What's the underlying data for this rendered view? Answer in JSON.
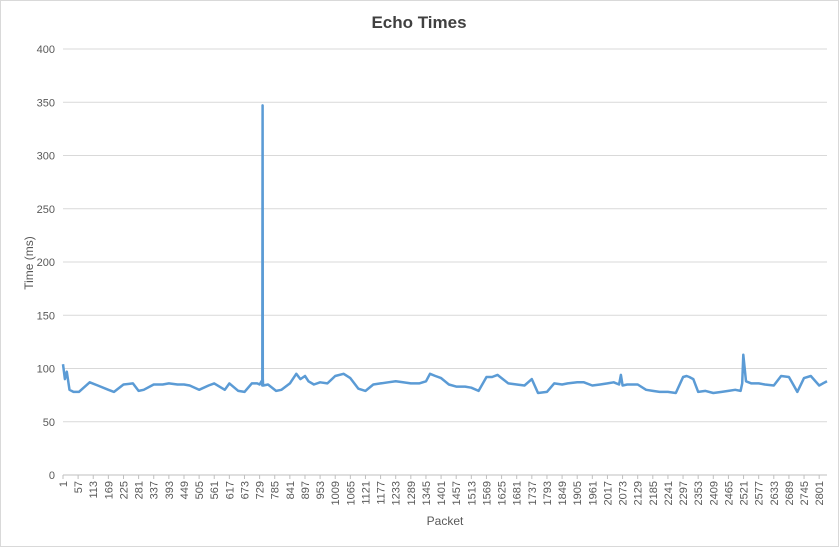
{
  "chart_data": {
    "type": "line",
    "title": "Echo Times",
    "xlabel": "Packet",
    "ylabel": "Time (ms)",
    "ylim": [
      0,
      400
    ],
    "yticks": [
      0,
      50,
      100,
      150,
      200,
      250,
      300,
      350,
      400
    ],
    "xlim": [
      1,
      2830
    ],
    "xticks": [
      1,
      57,
      113,
      169,
      225,
      281,
      337,
      393,
      449,
      505,
      561,
      617,
      673,
      729,
      785,
      841,
      897,
      953,
      1009,
      1065,
      1121,
      1177,
      1233,
      1289,
      1345,
      1401,
      1457,
      1513,
      1569,
      1625,
      1681,
      1737,
      1793,
      1849,
      1905,
      1961,
      2017,
      2073,
      2129,
      2185,
      2241,
      2297,
      2353,
      2409,
      2465,
      2521,
      2577,
      2633,
      2689,
      2745,
      2801
    ],
    "grid": true,
    "legend": "none",
    "series": [
      {
        "color": "#5b9bd5",
        "x": [
          1,
          8,
          15,
          25,
          40,
          60,
          100,
          130,
          169,
          190,
          225,
          260,
          281,
          300,
          337,
          370,
          393,
          425,
          449,
          470,
          505,
          540,
          561,
          600,
          617,
          650,
          673,
          700,
          720,
          729,
          736,
          739,
          740,
          741,
          742,
          743,
          760,
          790,
          810,
          841,
          865,
          880,
          897,
          910,
          930,
          953,
          980,
          1009,
          1040,
          1065,
          1095,
          1121,
          1150,
          1177,
          1205,
          1233,
          1260,
          1289,
          1320,
          1345,
          1360,
          1380,
          1401,
          1430,
          1457,
          1490,
          1513,
          1540,
          1569,
          1590,
          1610,
          1625,
          1650,
          1681,
          1710,
          1737,
          1760,
          1793,
          1820,
          1849,
          1870,
          1905,
          1930,
          1961,
          1990,
          2017,
          2040,
          2060,
          2067,
          2073,
          2090,
          2129,
          2160,
          2185,
          2210,
          2241,
          2270,
          2297,
          2310,
          2320,
          2335,
          2353,
          2380,
          2409,
          2440,
          2465,
          2490,
          2510,
          2516,
          2520,
          2530,
          2550,
          2577,
          2600,
          2633,
          2660,
          2689,
          2705,
          2720,
          2745,
          2770,
          2801,
          2815,
          2830
        ],
        "y": [
          104,
          90,
          97,
          80,
          78,
          78,
          87,
          84,
          80,
          78,
          85,
          86,
          79,
          80,
          85,
          85,
          86,
          85,
          85,
          84,
          80,
          84,
          86,
          80,
          86,
          79,
          78,
          86,
          86,
          85,
          88,
          84,
          347,
          90,
          85,
          84,
          85,
          79,
          80,
          86,
          95,
          90,
          93,
          88,
          85,
          87,
          86,
          93,
          95,
          91,
          81,
          79,
          85,
          86,
          87,
          88,
          87,
          86,
          86,
          88,
          95,
          93,
          91,
          85,
          83,
          83,
          82,
          79,
          92,
          92,
          94,
          91,
          86,
          85,
          84,
          90,
          77,
          78,
          86,
          85,
          86,
          87,
          87,
          84,
          85,
          86,
          87,
          85,
          94,
          84,
          85,
          85,
          80,
          79,
          78,
          78,
          77,
          92,
          93,
          92,
          90,
          78,
          79,
          77,
          78,
          79,
          80,
          79,
          86,
          113,
          88,
          86,
          86,
          85,
          84,
          93,
          92,
          85,
          78,
          91,
          93,
          84,
          86,
          88
        ]
      }
    ]
  }
}
